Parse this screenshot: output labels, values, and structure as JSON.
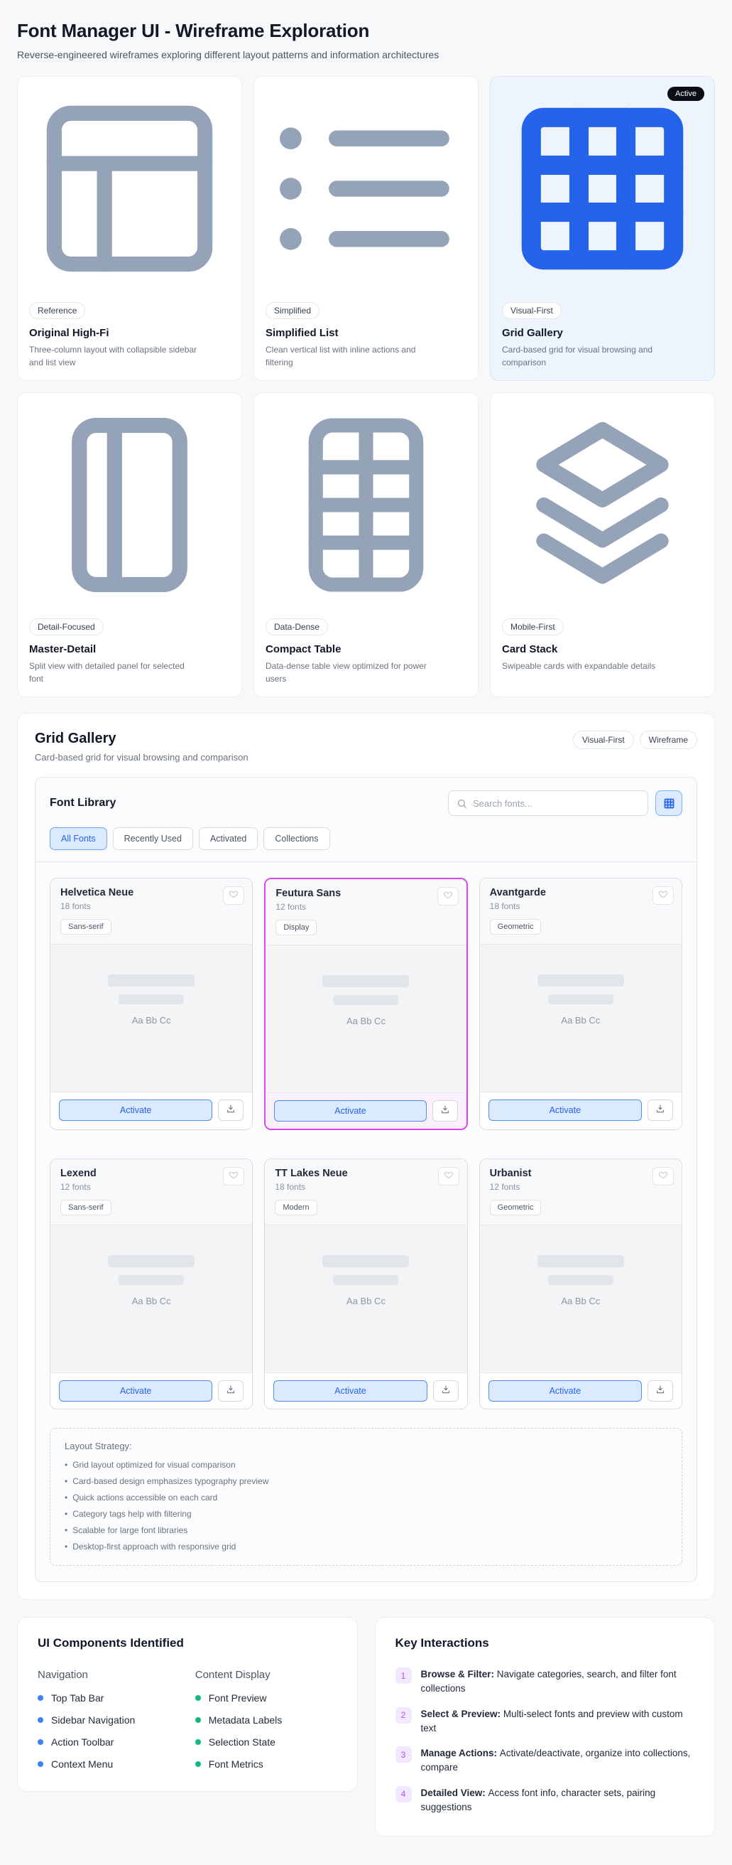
{
  "page": {
    "title": "Font Manager UI - Wireframe Exploration",
    "subtitle": "Reverse-engineered wireframes exploring different layout patterns and information architectures"
  },
  "colors": {
    "accent_blue": "#2563eb",
    "active_card_bg": "#edf4fe",
    "selected_border": "#d946ef",
    "nav_dot": "#3b82f6",
    "content_dot": "#10b981",
    "interaction_chip_bg": "#f3e8ff",
    "interaction_chip_text": "#a855f7"
  },
  "patterns": [
    {
      "icon": "panels-top-left-icon",
      "badge": "Reference",
      "title": "Original High-Fi",
      "desc": "Three-column layout with collapsible sidebar and list view",
      "active": false
    },
    {
      "icon": "list-icon",
      "badge": "Simplified",
      "title": "Simplified List",
      "desc": "Clean vertical list with inline actions and filtering",
      "active": false
    },
    {
      "icon": "grid-icon",
      "badge": "Visual-First",
      "title": "Grid Gallery",
      "desc": "Card-based grid for visual browsing and comparison",
      "active": true,
      "active_label": "Active"
    },
    {
      "icon": "panel-left-icon",
      "badge": "Detail-Focused",
      "title": "Master-Detail",
      "desc": "Split view with detailed panel for selected font",
      "active": false
    },
    {
      "icon": "table-icon",
      "badge": "Data-Dense",
      "title": "Compact Table",
      "desc": "Data-dense table view optimized for power users",
      "active": false
    },
    {
      "icon": "layers-icon",
      "badge": "Mobile-First",
      "title": "Card Stack",
      "desc": "Swipeable cards with expandable details",
      "active": false
    }
  ],
  "section": {
    "title": "Grid Gallery",
    "subtitle": "Card-based grid for visual browsing and comparison",
    "pills": [
      "Visual-First",
      "Wireframe"
    ]
  },
  "font_library": {
    "title": "Font Library",
    "search_placeholder": "Search fonts...",
    "tabs": [
      {
        "label": "All Fonts",
        "active": true
      },
      {
        "label": "Recently Used",
        "active": false
      },
      {
        "label": "Activated",
        "active": false
      },
      {
        "label": "Collections",
        "active": false
      }
    ],
    "cards": [
      {
        "name": "Helvetica Neue",
        "count": "18 fonts",
        "tag": "Sans-serif",
        "preview": "Aa Bb Cc",
        "action": "Activate",
        "selected": false
      },
      {
        "name": "Feutura Sans",
        "count": "12 fonts",
        "tag": "Display",
        "preview": "Aa Bb Cc",
        "action": "Activate",
        "selected": true
      },
      {
        "name": "Avantgarde",
        "count": "18 fonts",
        "tag": "Geometric",
        "preview": "Aa Bb Cc",
        "action": "Activate",
        "selected": false
      },
      {
        "name": "Lexend",
        "count": "12 fonts",
        "tag": "Sans-serif",
        "preview": "Aa Bb Cc",
        "action": "Activate",
        "selected": false
      },
      {
        "name": "TT Lakes Neue",
        "count": "18 fonts",
        "tag": "Modern",
        "preview": "Aa Bb Cc",
        "action": "Activate",
        "selected": false
      },
      {
        "name": "Urbanist",
        "count": "12 fonts",
        "tag": "Geometric",
        "preview": "Aa Bb Cc",
        "action": "Activate",
        "selected": false
      }
    ],
    "strategy": {
      "title": "Layout Strategy:",
      "items": [
        "Grid layout optimized for visual comparison",
        "Card-based design emphasizes typography preview",
        "Quick actions accessible on each card",
        "Category tags help with filtering",
        "Scalable for large font libraries",
        "Desktop-first approach with responsive grid"
      ]
    }
  },
  "components": {
    "title": "UI Components Identified",
    "groups": [
      {
        "heading": "Navigation",
        "dot_color": "#3b82f6",
        "items": [
          "Top Tab Bar",
          "Sidebar Navigation",
          "Action Toolbar",
          "Context Menu"
        ]
      },
      {
        "heading": "Content Display",
        "dot_color": "#10b981",
        "items": [
          "Font Preview",
          "Metadata Labels",
          "Selection State",
          "Font Metrics"
        ]
      }
    ]
  },
  "interactions": {
    "title": "Key Interactions",
    "items": [
      {
        "num": "1",
        "label": "Browse & Filter:",
        "text": "Navigate categories, search, and filter font collections"
      },
      {
        "num": "2",
        "label": "Select & Preview:",
        "text": "Multi-select fonts and preview with custom text"
      },
      {
        "num": "3",
        "label": "Manage Actions:",
        "text": "Activate/deactivate, organize into collections, compare"
      },
      {
        "num": "4",
        "label": "Detailed View:",
        "text": "Access font info, character sets, pairing suggestions"
      }
    ]
  }
}
